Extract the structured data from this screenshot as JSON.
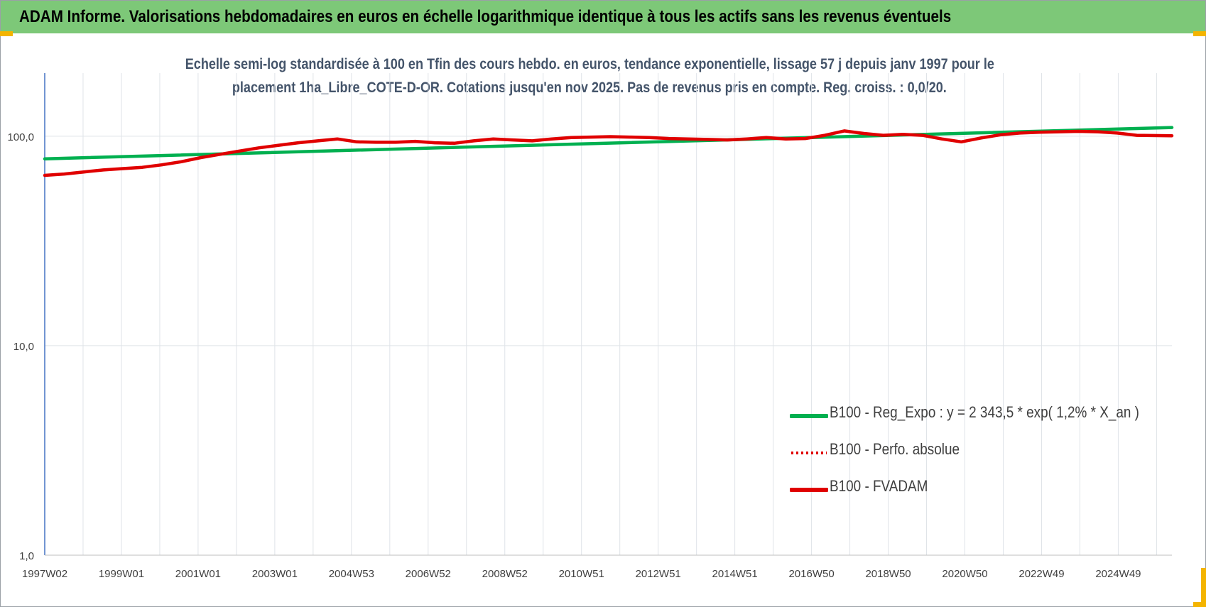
{
  "banner": {
    "title": "ADAM Informe. Valorisations hebdomadaires en euros en échelle logarithmique identique à tous les actifs sans les revenus éventuels"
  },
  "chart_data": {
    "type": "line",
    "title_line1": "Echelle semi-log standardisée à 100 en Tfin des cours hebdo. en euros, tendance exponentielle, lissage 57 j depuis janv 1997 pour le",
    "title_line2": "placement 1ha_Libre_COTE-D-OR. Cotations jusqu'en nov 2025. Pas de revenus pris en compte. Reg. croiss. : 0,0/20.",
    "y_scale": "log",
    "ylim": [
      1,
      200
    ],
    "y_ticks": [
      "1,0",
      "10,0",
      "100,0"
    ],
    "x_ticks": [
      "1997W02",
      "1999W01",
      "2001W01",
      "2003W01",
      "2004W53",
      "2006W52",
      "2008W52",
      "2010W51",
      "2012W51",
      "2014W51",
      "2016W50",
      "2018W50",
      "2020W50",
      "2022W49",
      "2024W49"
    ],
    "xlim": [
      1997.0,
      2025.9
    ],
    "grid": true,
    "legend_position": "center-right",
    "series": [
      {
        "name": "B100 - Reg_Expo : y = 2 343,5 * exp( 1,2% *  X_an )",
        "color": "#00b050",
        "style": "solid",
        "x": [
          1997.0,
          2025.9
        ],
        "y": [
          78.0,
          110.0
        ]
      },
      {
        "name": "B100 - Perfo. absolue",
        "color": "#e00000",
        "style": "dotted",
        "x": [
          1997.0,
          1997.5,
          1998.0,
          1998.5,
          1999.0,
          1999.5,
          2000.0,
          2000.5,
          2001.0,
          2001.5,
          2002.0,
          2002.5,
          2003.0,
          2003.5,
          2004.0,
          2004.5,
          2005.0,
          2005.5,
          2006.0,
          2006.5,
          2007.0,
          2007.5,
          2008.0,
          2008.5,
          2009.0,
          2009.5,
          2010.0,
          2010.5,
          2011.0,
          2011.5,
          2012.0,
          2012.5,
          2013.0,
          2013.5,
          2014.0,
          2014.5,
          2015.0,
          2015.5,
          2016.0,
          2016.5,
          2017.0,
          2017.5,
          2018.0,
          2018.5,
          2019.0,
          2019.5,
          2020.0,
          2020.5,
          2021.0,
          2021.5,
          2022.0,
          2022.5,
          2023.0,
          2023.5,
          2024.0,
          2024.5,
          2025.0,
          2025.9
        ],
        "y": [
          65,
          66,
          67.5,
          69,
          70,
          71,
          73,
          75.5,
          79,
          82,
          85,
          88,
          90.5,
          93,
          95,
          97,
          94,
          93.5,
          93.5,
          94.5,
          93,
          92.5,
          95,
          97,
          96,
          95,
          97,
          98.5,
          99,
          99.5,
          99,
          98.5,
          97.5,
          97,
          96.5,
          96,
          97,
          98.5,
          97,
          97.5,
          101,
          106,
          103,
          101,
          102,
          101,
          97,
          94,
          98,
          101.5,
          103.5,
          104.5,
          105,
          105.5,
          105,
          103.5,
          101,
          100.5
        ]
      },
      {
        "name": "B100 - FVADAM",
        "color": "#e00000",
        "style": "solid",
        "x": [
          1997.0,
          1997.5,
          1998.0,
          1998.5,
          1999.0,
          1999.5,
          2000.0,
          2000.5,
          2001.0,
          2001.5,
          2002.0,
          2002.5,
          2003.0,
          2003.5,
          2004.0,
          2004.5,
          2005.0,
          2005.5,
          2006.0,
          2006.5,
          2007.0,
          2007.5,
          2008.0,
          2008.5,
          2009.0,
          2009.5,
          2010.0,
          2010.5,
          2011.0,
          2011.5,
          2012.0,
          2012.5,
          2013.0,
          2013.5,
          2014.0,
          2014.5,
          2015.0,
          2015.5,
          2016.0,
          2016.5,
          2017.0,
          2017.5,
          2018.0,
          2018.5,
          2019.0,
          2019.5,
          2020.0,
          2020.5,
          2021.0,
          2021.5,
          2022.0,
          2022.5,
          2023.0,
          2023.5,
          2024.0,
          2024.5,
          2025.0,
          2025.9
        ],
        "y": [
          65,
          66,
          67.5,
          69,
          70,
          71,
          73,
          75.5,
          79,
          82,
          85,
          88,
          90.5,
          93,
          95,
          97,
          94,
          93.5,
          93.5,
          94.5,
          93,
          92.5,
          95,
          97,
          96,
          95,
          97,
          98.5,
          99,
          99.5,
          99,
          98.5,
          97.5,
          97,
          96.5,
          96,
          97,
          98.5,
          97,
          97.5,
          101,
          106,
          103,
          101,
          102,
          101,
          97,
          94,
          98,
          101.5,
          103.5,
          104.5,
          105,
          105.5,
          105,
          103.5,
          101,
          100.5
        ]
      }
    ]
  }
}
